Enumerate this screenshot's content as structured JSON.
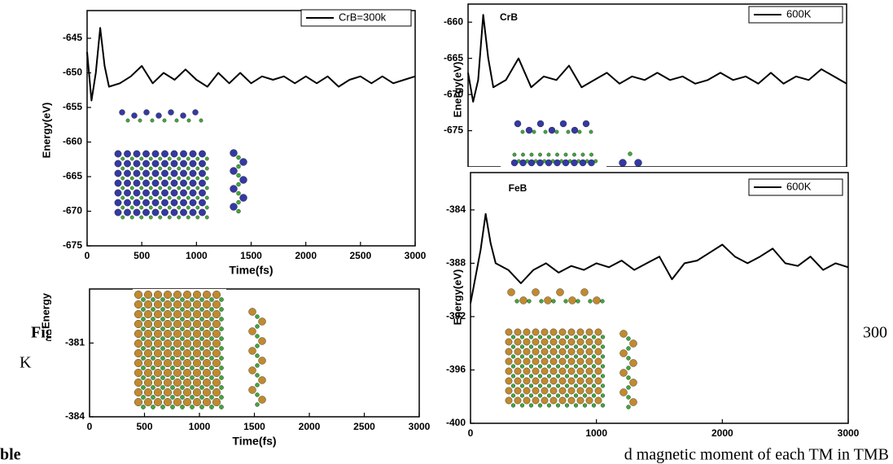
{
  "document": {
    "fragments": [
      "Fig",
      "K",
      "300",
      "ble",
      "d magnetic moment of each TM in TMB"
    ]
  },
  "chart_data": [
    {
      "type": "line",
      "xlabel": "Time(fs)",
      "ylabel": "Energy(eV)",
      "xlim": [
        0,
        3000
      ],
      "xticks": [
        0,
        500,
        1000,
        1500,
        2000,
        2500,
        3000
      ],
      "ylim": [
        -675,
        -641
      ],
      "yticks": [
        -645,
        -650,
        -655,
        -660,
        -665,
        -670,
        -675
      ],
      "x": [
        0,
        40,
        80,
        120,
        160,
        200,
        300,
        400,
        500,
        600,
        700,
        800,
        900,
        1000,
        1100,
        1200,
        1300,
        1400,
        1500,
        1600,
        1700,
        1800,
        1900,
        2000,
        2100,
        2200,
        2300,
        2400,
        2500,
        2600,
        2700,
        2800,
        2900,
        3000
      ],
      "series": [
        {
          "name": "CrB=300k",
          "color": "#000000",
          "values": [
            -647,
            -654,
            -650,
            -643.5,
            -649,
            -652,
            -651.5,
            -650.5,
            -649,
            -651.5,
            -650,
            -651,
            -649.5,
            -651,
            -652,
            -650,
            -651.5,
            -650,
            -651.5,
            -650.5,
            -651,
            -650.5,
            -651.5,
            -650.5,
            -651.5,
            -650.5,
            -652,
            -651,
            -650.5,
            -651.5,
            -650.5,
            -651.5,
            -651,
            -650.5
          ]
        }
      ]
    },
    {
      "type": "line",
      "ylabel": "Energy(eV)",
      "annotation": "CrB",
      "xlim": [
        0,
        3000
      ],
      "ylim": [
        -680,
        -657.5
      ],
      "yticks": [
        -660,
        -665,
        -670,
        -675
      ],
      "x": [
        0,
        40,
        80,
        120,
        160,
        200,
        300,
        400,
        500,
        600,
        700,
        800,
        900,
        1000,
        1100,
        1200,
        1300,
        1400,
        1500,
        1600,
        1700,
        1800,
        1900,
        2000,
        2100,
        2200,
        2300,
        2400,
        2500,
        2600,
        2700,
        2800,
        2900,
        3000
      ],
      "series": [
        {
          "name": "600K",
          "color": "#000000",
          "values": [
            -667,
            -671,
            -668,
            -659,
            -665,
            -669,
            -668,
            -665,
            -669,
            -667.5,
            -668,
            -666,
            -669,
            -668,
            -667,
            -668.5,
            -667.5,
            -668,
            -667,
            -668,
            -667.5,
            -668.5,
            -668,
            -667,
            -668,
            -667.5,
            -668.5,
            -667,
            -668.5,
            -667.5,
            -668,
            -666.5,
            -667.5,
            -668.5
          ]
        }
      ]
    },
    {
      "type": "line",
      "xlabel": "Time(fs)",
      "ylabel": "Energy",
      "xlim": [
        0,
        3000
      ],
      "xticks": [
        0,
        500,
        1000,
        1500,
        2000,
        2500,
        3000
      ],
      "ylim": [
        -384,
        -378.8
      ],
      "yticks": [
        -381,
        -384
      ]
    },
    {
      "type": "line",
      "ylabel": "Energy(eV)",
      "annotation": "FeB",
      "xlim": [
        0,
        3000
      ],
      "xticks": [
        0,
        1000,
        2000,
        3000
      ],
      "ylim": [
        -400,
        -381.2
      ],
      "yticks": [
        -384,
        -388,
        -392,
        -396,
        -400
      ],
      "x": [
        0,
        40,
        80,
        120,
        160,
        200,
        300,
        400,
        500,
        600,
        700,
        800,
        900,
        1000,
        1100,
        1200,
        1300,
        1400,
        1500,
        1600,
        1700,
        1800,
        1900,
        2000,
        2100,
        2200,
        2300,
        2400,
        2500,
        2600,
        2700,
        2800,
        2900,
        3000
      ],
      "series": [
        {
          "name": "600K",
          "color": "#000000",
          "values": [
            -391,
            -389,
            -387,
            -384.3,
            -386.5,
            -388,
            -388.5,
            -389.5,
            -388.5,
            -388,
            -388.7,
            -388.2,
            -388.5,
            -388,
            -388.3,
            -387.8,
            -388.5,
            -388,
            -387.5,
            -389.2,
            -388,
            -387.8,
            -387.2,
            -386.6,
            -387.5,
            -388,
            -387.5,
            -386.9,
            -388,
            -388.2,
            -387.5,
            -388.5,
            -388,
            -388.3
          ]
        }
      ]
    }
  ]
}
